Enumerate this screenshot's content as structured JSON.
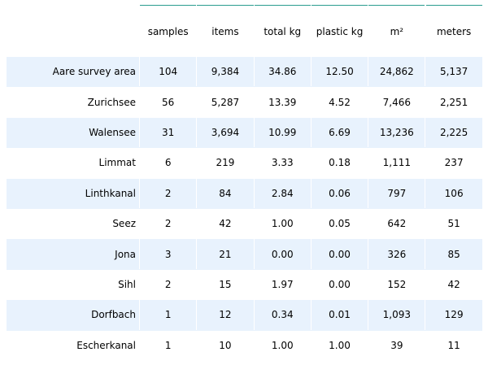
{
  "colors": {
    "band": "#e8f2fd",
    "plain": "#ffffff",
    "rule": "#2a9d8f"
  },
  "chart_data": {
    "type": "table",
    "columns": [
      "",
      "samples",
      "items",
      "total kg",
      "plastic kg",
      "m²",
      "meters"
    ],
    "rows": [
      {
        "label": "Aare survey area",
        "values": [
          "104",
          "9,384",
          "34.86",
          "12.50",
          "24,862",
          "5,137"
        ]
      },
      {
        "label": "Zurichsee",
        "values": [
          "56",
          "5,287",
          "13.39",
          "4.52",
          "7,466",
          "2,251"
        ]
      },
      {
        "label": "Walensee",
        "values": [
          "31",
          "3,694",
          "10.99",
          "6.69",
          "13,236",
          "2,225"
        ]
      },
      {
        "label": "Limmat",
        "values": [
          "6",
          "219",
          "3.33",
          "0.18",
          "1,111",
          "237"
        ]
      },
      {
        "label": "Linthkanal",
        "values": [
          "2",
          "84",
          "2.84",
          "0.06",
          "797",
          "106"
        ]
      },
      {
        "label": "Seez",
        "values": [
          "2",
          "42",
          "1.00",
          "0.05",
          "642",
          "51"
        ]
      },
      {
        "label": "Jona",
        "values": [
          "3",
          "21",
          "0.00",
          "0.00",
          "326",
          "85"
        ]
      },
      {
        "label": "Sihl",
        "values": [
          "2",
          "15",
          "1.97",
          "0.00",
          "152",
          "42"
        ]
      },
      {
        "label": "Dorfbach",
        "values": [
          "1",
          "12",
          "0.34",
          "0.01",
          "1,093",
          "129"
        ]
      },
      {
        "label": "Escherkanal",
        "values": [
          "1",
          "10",
          "1.00",
          "1.00",
          "39",
          "11"
        ]
      }
    ]
  }
}
